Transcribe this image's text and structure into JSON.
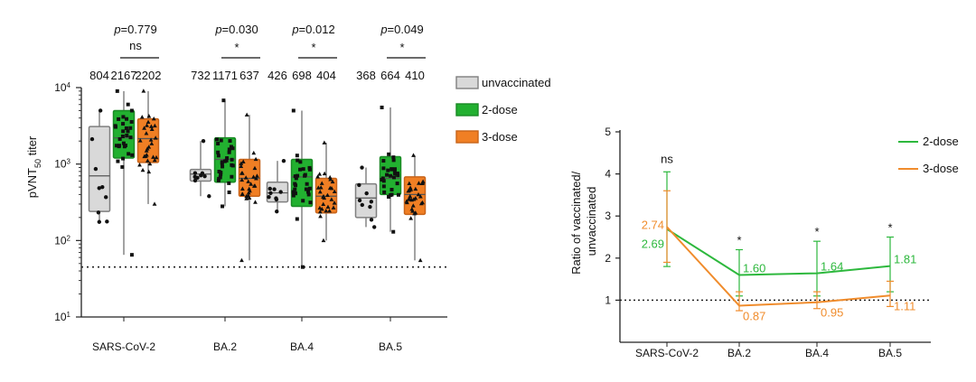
{
  "chart_data": [
    {
      "type": "box",
      "ylabel": "pVNT50 titer",
      "ylabel_prefix": "pVNT",
      "ylabel_sub": "50",
      "ylabel_suffix": " titer",
      "yscale": "log",
      "ylim": [
        10,
        10000
      ],
      "yticks": [
        {
          "value": 10,
          "base": "10",
          "exp": "1"
        },
        {
          "value": 100,
          "base": "10",
          "exp": "2"
        },
        {
          "value": 1000,
          "base": "10",
          "exp": "3"
        },
        {
          "value": 10000,
          "base": "10",
          "exp": "4"
        }
      ],
      "dotted_line": 45,
      "categories": [
        "SARS-CoV-2",
        "BA.2",
        "BA.4",
        "BA.5"
      ],
      "legend": [
        {
          "name": "unvaccinated",
          "color": "#d9d9d9"
        },
        {
          "name": "2-dose",
          "color": "#22b030"
        },
        {
          "name": "3-dose",
          "color": "#f07f24"
        }
      ],
      "group_labels": [
        [
          "804",
          "2167",
          "2202"
        ],
        [
          "732",
          "1171",
          "637"
        ],
        [
          "426",
          "698",
          "404"
        ],
        [
          "368",
          "664",
          "410"
        ]
      ],
      "significance": [
        {
          "p": "=0.779",
          "mark": "ns"
        },
        {
          "p": "=0.030",
          "mark": "*"
        },
        {
          "p": "=0.012",
          "mark": "*"
        },
        {
          "p": "=0.049",
          "mark": "*"
        }
      ],
      "p_letter": "p",
      "boxes": [
        {
          "category": "SARS-CoV-2",
          "series": "unvaccinated",
          "min": 175,
          "q1": 240,
          "median": 700,
          "q3": 3100,
          "max": 5000
        },
        {
          "category": "SARS-CoV-2",
          "series": "2-dose",
          "min": 65,
          "q1": 1200,
          "median": 2200,
          "q3": 5000,
          "max": 9000
        },
        {
          "category": "SARS-CoV-2",
          "series": "3-dose",
          "min": 300,
          "q1": 1050,
          "median": 2150,
          "q3": 3900,
          "max": 9000
        },
        {
          "category": "BA.2",
          "series": "unvaccinated",
          "min": 380,
          "q1": 600,
          "median": 740,
          "q3": 850,
          "max": 2000
        },
        {
          "category": "BA.2",
          "series": "2-dose",
          "min": 280,
          "q1": 580,
          "median": 1150,
          "q3": 2200,
          "max": 6800
        },
        {
          "category": "BA.2",
          "series": "3-dose",
          "min": 55,
          "q1": 380,
          "median": 650,
          "q3": 1150,
          "max": 4400
        },
        {
          "category": "BA.4",
          "series": "unvaccinated",
          "min": 240,
          "q1": 320,
          "median": 420,
          "q3": 580,
          "max": 1100
        },
        {
          "category": "BA.4",
          "series": "2-dose",
          "min": 45,
          "q1": 280,
          "median": 680,
          "q3": 1150,
          "max": 5000
        },
        {
          "category": "BA.4",
          "series": "3-dose",
          "min": 100,
          "q1": 230,
          "median": 380,
          "q3": 650,
          "max": 1900
        },
        {
          "category": "BA.5",
          "series": "unvaccinated",
          "min": 150,
          "q1": 200,
          "median": 360,
          "q3": 550,
          "max": 900
        },
        {
          "category": "BA.5",
          "series": "2-dose",
          "min": 130,
          "q1": 400,
          "median": 650,
          "q3": 1250,
          "max": 5500
        },
        {
          "category": "BA.5",
          "series": "3-dose",
          "min": 55,
          "q1": 220,
          "median": 400,
          "q3": 680,
          "max": 1300
        }
      ]
    },
    {
      "type": "line",
      "ylabel_line1": "Ratio of vaccinated/",
      "ylabel_line2": "unvaccinated",
      "ylim": [
        0,
        5
      ],
      "yticks": [
        "1",
        "2",
        "3",
        "4",
        "5"
      ],
      "dotted_line": 1,
      "categories": [
        "SARS-CoV-2",
        "BA.2",
        "BA.4",
        "BA.5"
      ],
      "series": [
        {
          "name": "2-dose",
          "color": "#2db83d",
          "values": [
            2.69,
            1.6,
            1.64,
            1.81
          ],
          "labels": [
            "2.69",
            "1.60",
            "1.64",
            "1.81"
          ],
          "err_low": [
            1.8,
            1.1,
            1.1,
            1.2
          ],
          "err_high": [
            4.05,
            2.2,
            2.4,
            2.5
          ]
        },
        {
          "name": "3-dose",
          "color": "#f08c2c",
          "values": [
            2.74,
            0.87,
            0.95,
            1.11
          ],
          "labels": [
            "2.74",
            "0.87",
            "0.95",
            "1.11"
          ],
          "err_low": [
            1.9,
            0.75,
            0.8,
            0.85
          ],
          "err_high": [
            3.6,
            1.2,
            1.2,
            1.45
          ]
        }
      ],
      "annotations": [
        "ns",
        "*",
        "*",
        "*"
      ]
    }
  ]
}
